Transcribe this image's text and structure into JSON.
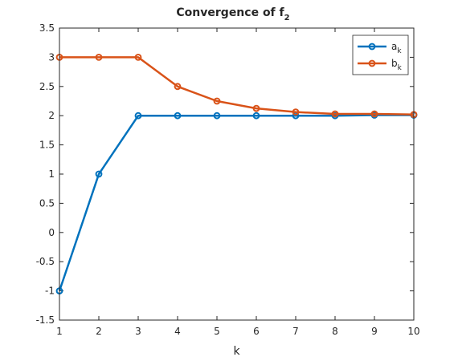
{
  "chart_data": {
    "type": "line",
    "title": "Convergence of f",
    "title_subscript": "2",
    "xlabel": "k",
    "ylabel": "",
    "xlim": [
      1,
      10
    ],
    "ylim": [
      -1.5,
      3.5
    ],
    "x": [
      1,
      2,
      3,
      4,
      5,
      6,
      7,
      8,
      9,
      10
    ],
    "xticks": [
      "1",
      "2",
      "3",
      "4",
      "5",
      "6",
      "7",
      "8",
      "9",
      "10"
    ],
    "yticks": [
      "-1.5",
      "-1",
      "-0.5",
      "0",
      "0.5",
      "1",
      "1.5",
      "2",
      "2.5",
      "3",
      "3.5"
    ],
    "grid": false,
    "legend_position": "top-right",
    "series": [
      {
        "name": "a",
        "name_subscript": "k",
        "color": "#0072BD",
        "marker": "circle",
        "values": [
          -1,
          1,
          2,
          2,
          2,
          2,
          2,
          2,
          2.01,
          2.01
        ]
      },
      {
        "name": "b",
        "name_subscript": "k",
        "color": "#D95319",
        "marker": "circle",
        "values": [
          3,
          3,
          3,
          2.5,
          2.25,
          2.125,
          2.0625,
          2.03,
          2.03,
          2.02
        ]
      }
    ]
  }
}
